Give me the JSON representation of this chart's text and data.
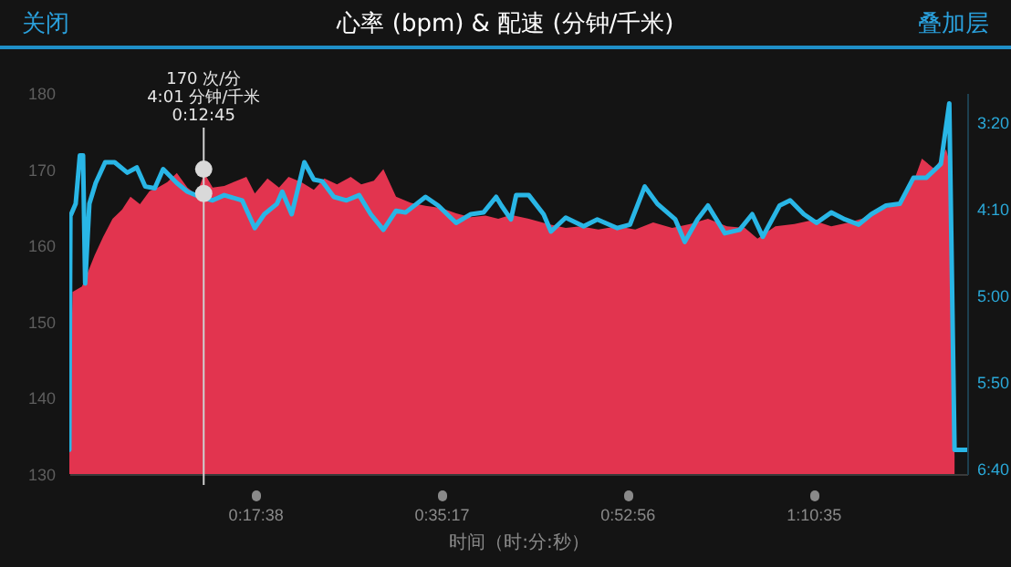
{
  "chart_data": {
    "type": "area",
    "title": "心率 (bpm) & 配速 (分钟/千米)",
    "xlabel": "时间（时:分:秒）",
    "annotations": [
      "关闭",
      "叠加层",
      "170 次/分\n4:01 分钟/千米\n0:12:45"
    ],
    "xlim": [
      0,
      85.2
    ],
    "xticks": [
      {
        "value": 17.633,
        "label": "0:17:38"
      },
      {
        "value": 35.283,
        "label": "0:35:17"
      },
      {
        "value": 52.933,
        "label": "0:52:56"
      },
      {
        "value": 70.583,
        "label": "1:10:35"
      }
    ],
    "ylim": [
      130,
      180
    ],
    "yticks": [
      130,
      140,
      150,
      160,
      170,
      180
    ],
    "y2lim": [
      403,
      183
    ],
    "y2ticks": [
      {
        "value": 200,
        "label": "3:20"
      },
      {
        "value": 250,
        "label": "4:10"
      },
      {
        "value": 300,
        "label": "5:00"
      },
      {
        "value": 350,
        "label": "5:50"
      },
      {
        "value": 400,
        "label": "6:40"
      }
    ],
    "ref_lines": [
      {
        "axis": "x",
        "value": 12.75,
        "color": "#cfcfcf"
      }
    ],
    "series": [
      {
        "color": "#e2344f",
        "x": [
          0,
          0.3,
          1.2,
          1.7,
          2.4,
          3.2,
          4.1,
          5.0,
          5.8,
          6.7,
          7.6,
          8.4,
          9.3,
          10.2,
          11.2,
          12.1,
          12.8,
          13.6,
          14.7,
          15.9,
          16.8,
          17.6,
          18.8,
          19.9,
          20.8,
          22.0,
          23.2,
          24.2,
          25.4,
          26.7,
          27.7,
          28.9,
          29.8,
          31.0,
          32.4,
          33.8,
          35.3,
          36.7,
          38.1,
          39.5,
          40.7,
          41.9,
          43.6,
          45.4,
          47.1,
          48.5,
          50.2,
          52.0,
          53.7,
          55.4,
          57.2,
          58.9,
          60.6,
          62.4,
          64.1,
          65.3,
          67.0,
          68.8,
          70.5,
          72.3,
          74.0,
          75.7,
          77.5,
          78.8,
          80.1,
          80.9,
          82.1,
          83.2,
          83.5,
          84.0
        ],
        "values": [
          133,
          153.9,
          154.6,
          156.3,
          158.7,
          161.1,
          163.5,
          164.7,
          166.4,
          165.4,
          167.1,
          167.6,
          168.3,
          169.5,
          167.6,
          166.6,
          169.5,
          167.6,
          167.8,
          168.5,
          169.0,
          166.8,
          168.8,
          167.6,
          169.0,
          168.3,
          167.3,
          168.8,
          168.0,
          169.0,
          168.0,
          168.5,
          170.0,
          166.4,
          165.6,
          165.2,
          164.9,
          164.2,
          163.7,
          163.9,
          163.5,
          164.0,
          163.5,
          162.8,
          162.3,
          162.5,
          162.1,
          162.5,
          162.1,
          163.0,
          162.3,
          162.8,
          163.5,
          162.5,
          162.3,
          160.9,
          162.5,
          162.8,
          163.3,
          162.5,
          163.0,
          163.7,
          164.9,
          165.6,
          168.3,
          171.4,
          170.0,
          172.6,
          171.1,
          132.4
        ]
      },
      {
        "type": "line",
        "axis": "y2",
        "color": "#29b6e6",
        "x": [
          0,
          0.1,
          0.6,
          1.0,
          1.3,
          1.5,
          1.9,
          2.5,
          3.4,
          4.3,
          5.5,
          6.4,
          7.2,
          8.1,
          8.9,
          10.2,
          11.2,
          12.4,
          13.6,
          14.7,
          16.4,
          17.6,
          18.5,
          19.7,
          20.2,
          21.1,
          22.3,
          23.2,
          24.0,
          25.1,
          26.3,
          27.5,
          28.6,
          29.8,
          31.0,
          31.9,
          33.8,
          35.0,
          36.7,
          38.1,
          39.3,
          40.5,
          41.0,
          41.9,
          42.4,
          43.6,
          45.0,
          45.7,
          47.1,
          48.8,
          50.1,
          52.0,
          53.2,
          54.6,
          55.8,
          57.5,
          58.4,
          59.6,
          60.6,
          62.2,
          63.6,
          64.8,
          65.8,
          67.4,
          68.4,
          69.7,
          70.9,
          72.3,
          73.6,
          74.9,
          76.1,
          77.5,
          78.8,
          80.1,
          81.3,
          82.7,
          83.5,
          84.0,
          85.1
        ],
        "values": [
          389,
          254,
          247,
          219,
          219,
          293,
          247,
          235,
          223,
          223,
          229,
          226,
          237,
          238,
          227,
          235,
          240,
          243,
          245,
          242,
          245,
          261,
          253,
          247,
          240,
          253,
          223,
          233,
          234,
          243,
          245,
          242,
          253,
          262,
          251,
          252,
          243,
          248,
          258,
          253,
          252,
          243,
          248,
          256,
          242,
          242,
          253,
          263,
          255,
          260,
          256,
          261,
          259,
          237,
          247,
          256,
          269,
          256,
          248,
          264,
          262,
          253,
          266,
          248,
          245,
          253,
          258,
          252,
          256,
          259,
          253,
          248,
          247,
          232,
          232,
          224,
          189,
          389,
          389
        ]
      },
      {
        "type": "scatter",
        "color": "#d9d9d9",
        "x": [
          12.75
        ],
        "values": [
          170
        ]
      },
      {
        "type": "scatter",
        "axis": "y2",
        "color": "#d9d9d9",
        "x": [
          12.75
        ],
        "values": [
          241
        ]
      }
    ]
  }
}
